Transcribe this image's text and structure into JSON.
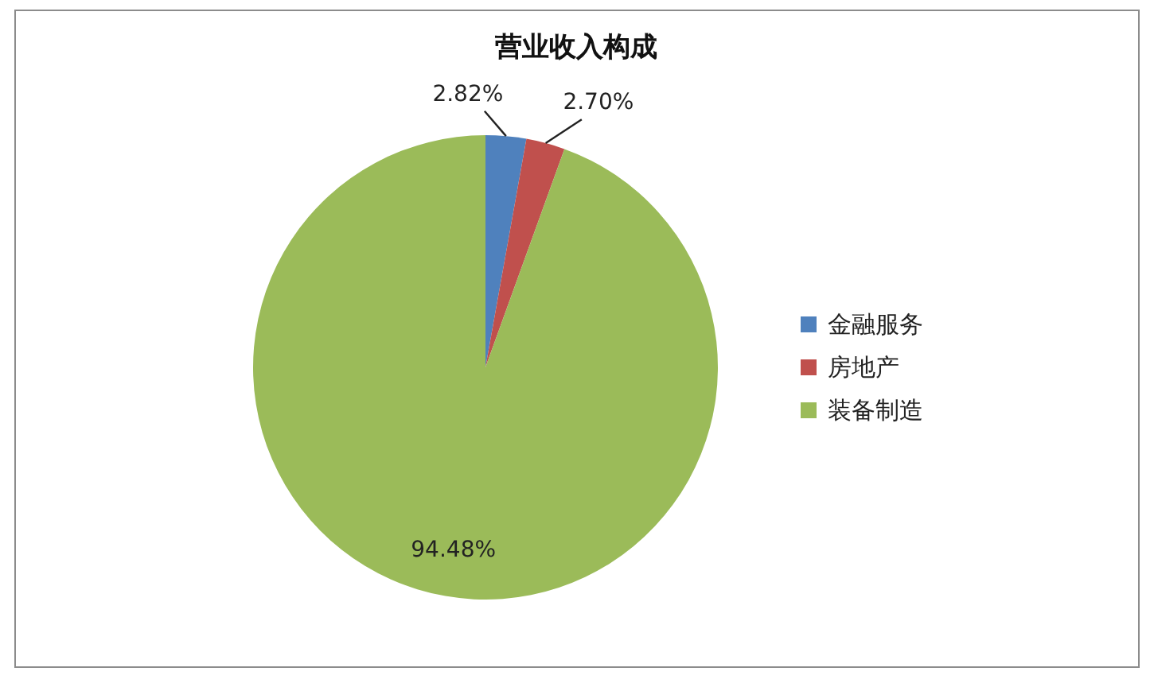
{
  "chart_data": {
    "type": "pie",
    "title": "营业收入构成",
    "categories": [
      "金融服务",
      "房地产",
      "装备制造"
    ],
    "values": [
      2.82,
      2.7,
      94.48
    ],
    "colors": [
      "#4f81bd",
      "#c0504d",
      "#9bbb59"
    ],
    "value_labels": [
      "2.82%",
      "2.70%",
      "94.48%"
    ],
    "legend": "right"
  }
}
